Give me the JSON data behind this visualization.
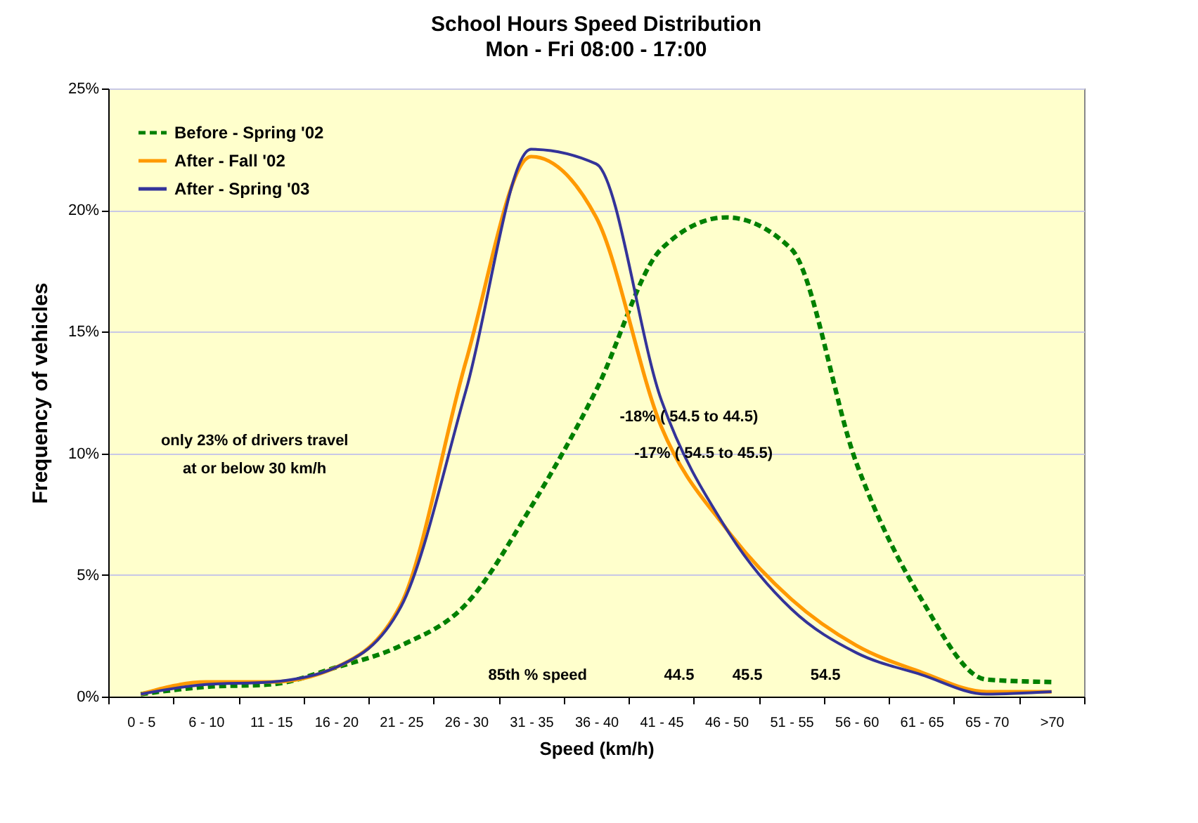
{
  "chart_data": {
    "type": "line",
    "title": "School Hours Speed Distribution",
    "subtitle": "Mon - Fri   08:00 - 17:00",
    "xlabel": "Speed (km/h)",
    "ylabel": "Frequency of vehicles",
    "categories": [
      "0 - 5",
      "6 - 10",
      "11 - 15",
      "16 - 20",
      "21 - 25",
      "26 - 30",
      "31 - 35",
      "36 - 40",
      "41 - 45",
      "46 - 50",
      "51 - 55",
      "56 - 60",
      "61 - 65",
      "65 - 70",
      ">70"
    ],
    "series": [
      {
        "name": "Before - Spring '02",
        "color": "#008000",
        "line_style": "dashed",
        "values": [
          0.1,
          0.4,
          0.5,
          1.2,
          2.1,
          3.8,
          7.8,
          12.6,
          18.4,
          19.7,
          18.4,
          9.6,
          4.0,
          0.7,
          0.6
        ]
      },
      {
        "name": "After - Fall '02",
        "color": "#ff9900",
        "values": [
          0.1,
          0.6,
          0.6,
          1.2,
          3.8,
          13.8,
          22.2,
          19.7,
          11.1,
          6.9,
          4.0,
          2.1,
          1.0,
          0.2,
          0.2
        ]
      },
      {
        "name": "After - Spring '03",
        "color": "#333399",
        "values": [
          0.1,
          0.5,
          0.6,
          1.2,
          3.7,
          12.6,
          22.5,
          21.9,
          12.2,
          6.9,
          3.6,
          1.8,
          0.9,
          0.1,
          0.2
        ]
      }
    ],
    "ylim": [
      0,
      25
    ],
    "yticks": [
      {
        "value": 0,
        "label": "0%"
      },
      {
        "value": 5,
        "label": "5%"
      },
      {
        "value": 10,
        "label": "10%"
      },
      {
        "value": 15,
        "label": "15%"
      },
      {
        "value": 20,
        "label": "20%"
      },
      {
        "value": 25,
        "label": "25%"
      }
    ],
    "grid": "y",
    "legend": "top left",
    "annotations": [
      "only 23% of drivers travel\nat or below 30 km/h",
      "85th % speed",
      "44.5",
      "45.5",
      "54.5",
      "-18% ( 54.5 to 44.5)",
      "-17% ( 54.5 to 45.5)"
    ]
  }
}
